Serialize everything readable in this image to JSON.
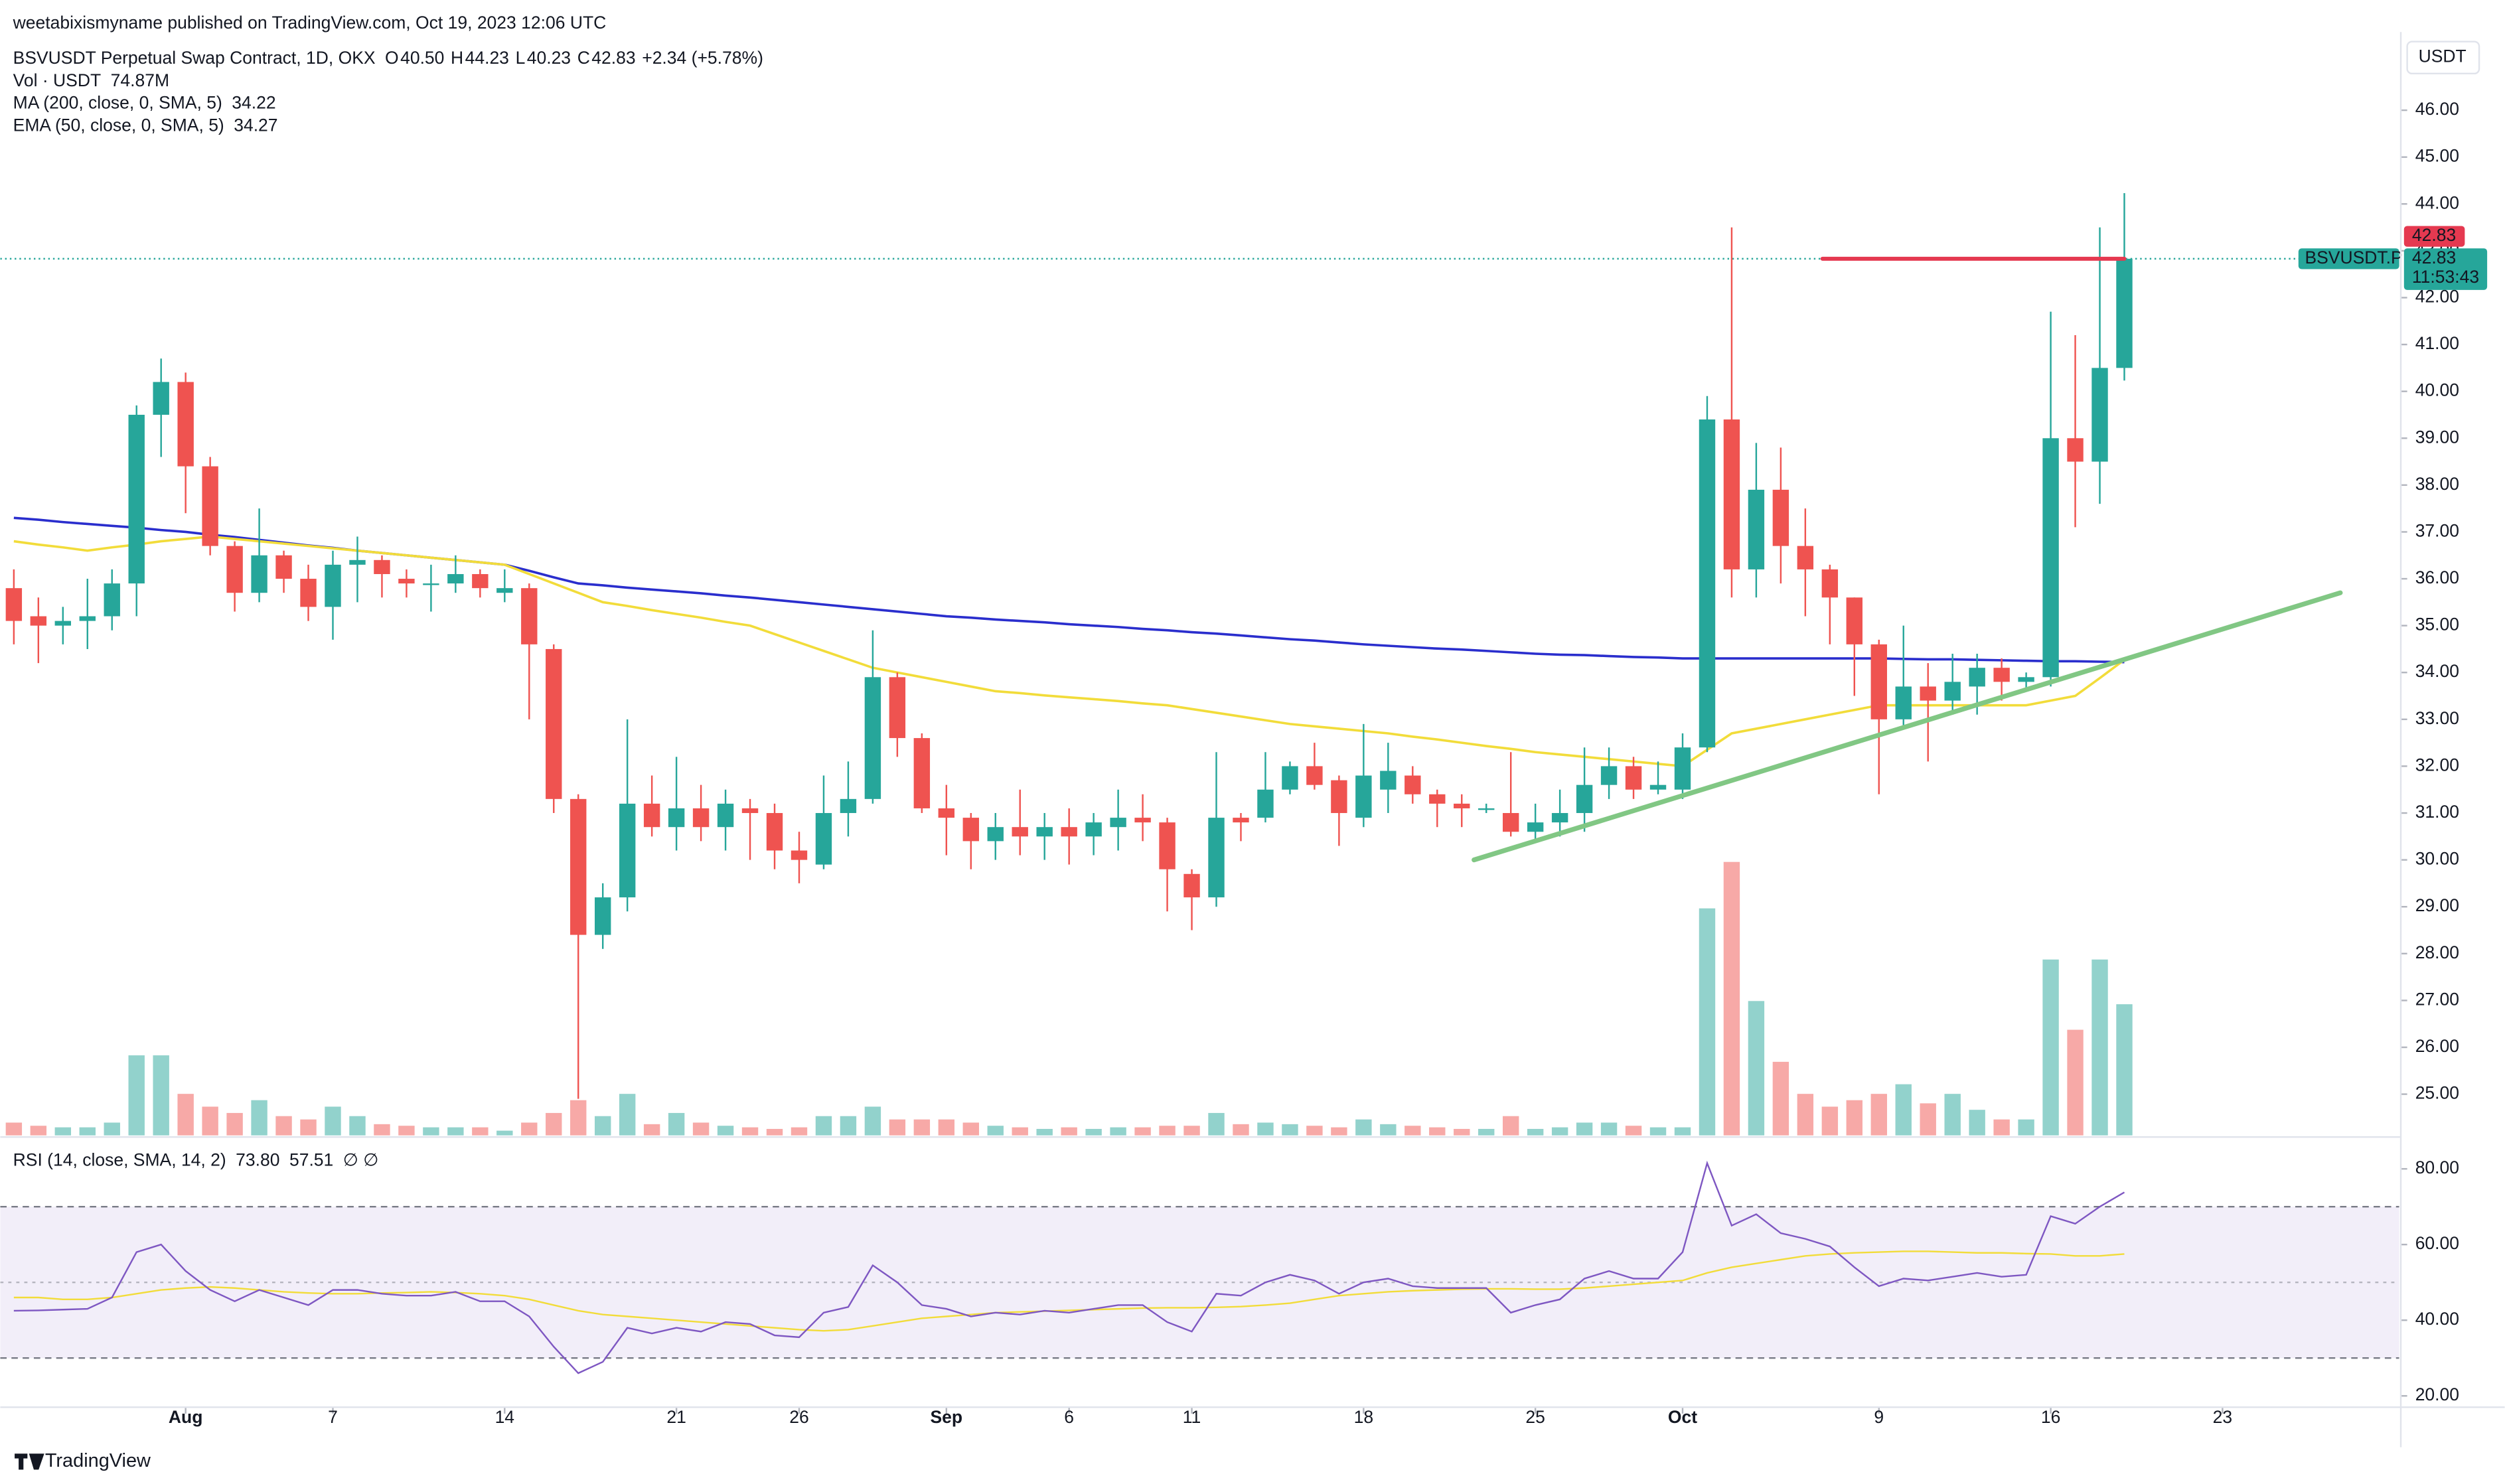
{
  "header": {
    "publisher": "weetabixismyname published on TradingView.com, Oct 19, 2023 12:06 UTC",
    "brand": "TradingView"
  },
  "chart_data": [
    {
      "type": "candlestick",
      "symbol": "BSVUSDT Perpetual Swap Contract, 1D, OKX",
      "currency": "USDT",
      "ohlc_legend": [
        {
          "label": "O",
          "value": "40.50"
        },
        {
          "label": "H",
          "value": "44.23"
        },
        {
          "label": "L",
          "value": "40.23"
        },
        {
          "label": "C",
          "value": "42.83"
        }
      ],
      "change": "+2.34 (+5.78%)",
      "x": [
        0,
        1,
        2,
        3,
        4,
        5,
        6,
        7,
        8,
        9,
        10,
        11,
        12,
        13,
        14,
        15,
        16,
        17,
        18,
        19,
        20,
        21,
        22,
        23,
        24,
        25,
        26,
        27,
        28,
        29,
        30,
        31,
        32,
        33,
        34,
        35,
        36,
        37,
        38,
        39,
        40,
        41,
        42,
        43,
        44,
        45,
        46,
        47,
        48,
        49,
        50,
        51,
        52,
        53,
        54,
        55,
        56,
        57,
        58,
        59,
        60,
        61,
        62,
        63,
        64,
        65,
        66,
        67,
        68,
        69,
        70,
        71,
        72,
        73,
        74,
        75,
        76,
        77,
        78,
        79,
        80,
        81,
        82,
        83,
        84,
        85,
        86
      ],
      "xlim": [
        0,
        97.2
      ],
      "xticks": [
        {
          "value": 7,
          "label": "Aug"
        },
        {
          "value": 13,
          "label": "7"
        },
        {
          "value": 20,
          "label": "14"
        },
        {
          "value": 27,
          "label": "21"
        },
        {
          "value": 32,
          "label": "26"
        },
        {
          "value": 38,
          "label": "Sep"
        },
        {
          "value": 43,
          "label": "6"
        },
        {
          "value": 48,
          "label": "11"
        },
        {
          "value": 55,
          "label": "18"
        },
        {
          "value": 62,
          "label": "25"
        },
        {
          "value": 68,
          "label": "Oct"
        },
        {
          "value": 76,
          "label": "9"
        },
        {
          "value": 83,
          "label": "16"
        },
        {
          "value": 90,
          "label": "23"
        }
      ],
      "ylim": [
        24.12,
        47.67
      ],
      "yticks": [
        {
          "value": 25,
          "label": "25.00"
        },
        {
          "value": 26,
          "label": "26.00"
        },
        {
          "value": 27,
          "label": "27.00"
        },
        {
          "value": 28,
          "label": "28.00"
        },
        {
          "value": 29,
          "label": "29.00"
        },
        {
          "value": 30,
          "label": "30.00"
        },
        {
          "value": 31,
          "label": "31.00"
        },
        {
          "value": 32,
          "label": "32.00"
        },
        {
          "value": 33,
          "label": "33.00"
        },
        {
          "value": 34,
          "label": "34.00"
        },
        {
          "value": 35,
          "label": "35.00"
        },
        {
          "value": 36,
          "label": "36.00"
        },
        {
          "value": 37,
          "label": "37.00"
        },
        {
          "value": 38,
          "label": "38.00"
        },
        {
          "value": 39,
          "label": "39.00"
        },
        {
          "value": 40,
          "label": "40.00"
        },
        {
          "value": 41,
          "label": "41.00"
        },
        {
          "value": 42,
          "label": "42.00"
        },
        {
          "value": 43,
          "label": "43.00"
        },
        {
          "value": 44,
          "label": "44.00"
        },
        {
          "value": 45,
          "label": "45.00"
        },
        {
          "value": 46,
          "label": "46.00"
        }
      ],
      "grid": false,
      "colors": {
        "up": "#26a69a",
        "down": "#ef5350"
      },
      "open": [
        35.8,
        35.2,
        35.0,
        35.1,
        35.2,
        35.9,
        39.5,
        40.2,
        38.4,
        36.7,
        35.7,
        36.5,
        36.0,
        35.4,
        36.3,
        36.4,
        36.0,
        35.9,
        35.9,
        36.1,
        35.7,
        35.8,
        34.5,
        31.3,
        28.4,
        29.2,
        31.2,
        30.7,
        31.1,
        30.7,
        31.1,
        31.0,
        30.2,
        29.9,
        31.0,
        31.3,
        33.9,
        32.6,
        31.1,
        30.9,
        30.4,
        30.7,
        30.5,
        30.7,
        30.5,
        30.7,
        30.9,
        30.8,
        29.7,
        29.2,
        30.9,
        30.9,
        31.5,
        32.0,
        31.7,
        30.9,
        31.5,
        31.8,
        31.4,
        31.2,
        31.1,
        31.0,
        30.6,
        30.8,
        31.0,
        31.6,
        32.0,
        31.5,
        31.5,
        32.4,
        39.4,
        36.2,
        37.9,
        36.7,
        36.2,
        35.6,
        34.6,
        33.0,
        33.7,
        33.4,
        33.7,
        34.1,
        33.8,
        33.9,
        39.0,
        38.5,
        40.5
      ],
      "high": [
        36.2,
        35.6,
        35.4,
        36.0,
        36.2,
        39.7,
        40.7,
        40.4,
        38.6,
        36.8,
        37.5,
        36.6,
        36.3,
        36.6,
        36.9,
        36.5,
        36.2,
        36.3,
        36.5,
        36.2,
        36.2,
        35.9,
        34.6,
        31.4,
        29.5,
        33.0,
        31.8,
        32.2,
        31.6,
        31.5,
        31.3,
        31.2,
        30.6,
        31.8,
        32.1,
        34.9,
        34.0,
        32.7,
        31.6,
        31.0,
        31.0,
        31.5,
        31.0,
        31.1,
        31.0,
        31.5,
        31.4,
        30.9,
        29.8,
        32.3,
        31.0,
        32.3,
        32.1,
        32.5,
        31.8,
        32.9,
        32.5,
        32.0,
        31.5,
        31.4,
        31.2,
        32.3,
        31.2,
        31.5,
        32.4,
        32.4,
        32.2,
        32.1,
        32.7,
        39.9,
        43.5,
        38.9,
        38.8,
        37.5,
        36.3,
        35.6,
        34.7,
        35.0,
        34.2,
        34.4,
        34.4,
        34.3,
        34.0,
        41.7,
        41.2,
        43.5,
        44.23
      ],
      "low": [
        34.6,
        34.2,
        34.6,
        34.5,
        34.9,
        35.2,
        38.6,
        37.4,
        36.5,
        35.3,
        35.5,
        35.7,
        35.1,
        34.7,
        35.5,
        35.6,
        35.6,
        35.3,
        35.7,
        35.6,
        35.5,
        33.0,
        31.0,
        24.9,
        28.1,
        28.9,
        30.5,
        30.2,
        30.4,
        30.2,
        30.0,
        29.8,
        29.5,
        29.8,
        30.5,
        31.2,
        32.2,
        31.0,
        30.1,
        29.8,
        30.0,
        30.1,
        30.0,
        29.9,
        30.1,
        30.2,
        30.4,
        28.9,
        28.5,
        29.0,
        30.4,
        30.8,
        31.4,
        31.5,
        30.3,
        30.7,
        31.0,
        31.2,
        30.7,
        30.7,
        31.0,
        30.5,
        30.4,
        30.5,
        30.6,
        31.3,
        31.3,
        31.4,
        31.3,
        32.3,
        35.6,
        35.6,
        35.9,
        35.2,
        34.6,
        33.5,
        31.4,
        32.8,
        32.1,
        33.1,
        33.1,
        33.4,
        33.6,
        33.7,
        37.1,
        37.6,
        40.23
      ],
      "close": [
        35.1,
        35.0,
        35.1,
        35.2,
        35.9,
        39.5,
        40.2,
        38.4,
        36.7,
        35.7,
        36.5,
        36.0,
        35.4,
        36.3,
        36.4,
        36.1,
        35.9,
        35.9,
        36.1,
        35.8,
        35.8,
        34.6,
        31.3,
        28.4,
        29.2,
        31.2,
        30.7,
        31.1,
        30.7,
        31.2,
        31.0,
        30.2,
        30.0,
        31.0,
        31.3,
        33.9,
        32.6,
        31.1,
        30.9,
        30.4,
        30.7,
        30.5,
        30.7,
        30.5,
        30.8,
        30.9,
        30.8,
        29.8,
        29.2,
        30.9,
        30.8,
        31.5,
        32.0,
        31.6,
        31.0,
        31.8,
        31.9,
        31.4,
        31.2,
        31.1,
        31.1,
        30.6,
        30.8,
        31.0,
        31.6,
        32.0,
        31.5,
        31.6,
        32.4,
        39.4,
        36.2,
        37.9,
        36.7,
        36.2,
        35.6,
        34.6,
        33.0,
        33.7,
        33.4,
        33.8,
        34.1,
        33.8,
        33.9,
        39.0,
        38.5,
        40.5,
        42.83
      ],
      "series": [
        {
          "name": "MA (200, close, 0, SMA, 5)",
          "color": "#2a2ecd",
          "values": [
            37.3,
            37.26,
            37.21,
            37.17,
            37.13,
            37.09,
            37.04,
            37.0,
            36.94,
            36.89,
            36.83,
            36.77,
            36.71,
            36.66,
            36.6,
            36.55,
            36.5,
            36.45,
            36.4,
            36.35,
            36.3,
            36.17,
            36.03,
            35.9,
            35.86,
            35.81,
            35.77,
            35.73,
            35.69,
            35.64,
            35.6,
            35.55,
            35.5,
            35.45,
            35.4,
            35.35,
            35.3,
            35.25,
            35.2,
            35.17,
            35.13,
            35.1,
            35.07,
            35.03,
            35.0,
            34.97,
            34.93,
            34.9,
            34.86,
            34.83,
            34.79,
            34.75,
            34.71,
            34.68,
            34.64,
            34.6,
            34.57,
            34.54,
            34.51,
            34.49,
            34.46,
            34.43,
            34.4,
            34.38,
            34.37,
            34.35,
            34.33,
            34.32,
            34.3,
            34.3,
            34.3,
            34.3,
            34.3,
            34.3,
            34.3,
            34.3,
            34.3,
            34.29,
            34.28,
            34.28,
            34.27,
            34.26,
            34.25,
            34.24,
            34.24,
            34.23,
            34.22
          ]
        },
        {
          "name": "EMA (50, close, 0, SMA, 5)",
          "color": "#f2dc3a",
          "values": [
            36.8,
            36.73,
            36.67,
            36.6,
            36.67,
            36.73,
            36.8,
            36.85,
            36.9,
            36.85,
            36.8,
            36.75,
            36.7,
            36.65,
            36.6,
            36.55,
            36.5,
            36.45,
            36.4,
            36.35,
            36.3,
            36.1,
            35.9,
            35.7,
            35.5,
            35.42,
            35.33,
            35.25,
            35.17,
            35.08,
            35.0,
            34.82,
            34.64,
            34.46,
            34.28,
            34.1,
            34.0,
            33.9,
            33.8,
            33.7,
            33.6,
            33.56,
            33.51,
            33.47,
            33.43,
            33.39,
            33.34,
            33.3,
            33.22,
            33.14,
            33.06,
            32.98,
            32.9,
            32.85,
            32.8,
            32.75,
            32.7,
            32.63,
            32.57,
            32.5,
            32.43,
            32.37,
            32.3,
            32.25,
            32.2,
            32.15,
            32.1,
            32.05,
            32.0,
            32.35,
            32.7,
            32.8,
            32.9,
            33.0,
            33.1,
            33.2,
            33.3,
            33.3,
            33.3,
            33.3,
            33.3,
            33.3,
            33.3,
            33.4,
            33.5,
            33.88,
            34.27
          ]
        }
      ],
      "volume": {
        "name": "Vol · USDT",
        "last_label": "74.87M",
        "values": [
          7.3,
          5.5,
          4.6,
          4.6,
          7.3,
          45.7,
          45.7,
          23.7,
          16.4,
          12.8,
          20.1,
          11.0,
          9.1,
          16.4,
          11.0,
          6.4,
          5.5,
          4.6,
          4.6,
          4.6,
          2.7,
          7.3,
          12.8,
          20.1,
          11.0,
          23.7,
          6.4,
          12.8,
          7.3,
          5.5,
          4.6,
          3.7,
          4.6,
          11.0,
          11.0,
          16.4,
          9.1,
          9.1,
          9.1,
          7.3,
          5.5,
          4.6,
          3.7,
          4.6,
          3.7,
          4.6,
          4.6,
          5.5,
          5.5,
          12.8,
          6.4,
          7.3,
          6.4,
          5.5,
          4.6,
          9.1,
          6.4,
          5.5,
          4.6,
          3.7,
          3.7,
          11.0,
          3.7,
          4.6,
          7.3,
          7.3,
          5.5,
          4.6,
          4.6,
          129.6,
          156.1,
          76.7,
          42.0,
          23.7,
          16.4,
          20.1,
          23.7,
          29.2,
          18.3,
          23.7,
          14.6,
          9.1,
          9.1,
          100.4,
          60.3,
          100.4,
          74.87
        ]
      },
      "last_price": {
        "value": 42.83,
        "label": "42.83",
        "symbol": "BSVUSDT.P",
        "countdown": "11:53:43",
        "color": "#26a69a"
      },
      "drawings": [
        {
          "type": "trendline",
          "color": "#81c784",
          "points": [
            [
              59.5,
              30.0
            ],
            [
              94.8,
              35.7
            ]
          ]
        },
        {
          "type": "horizontal",
          "color": "#e53950",
          "points": [
            [
              73.7,
              42.83
            ],
            [
              86,
              42.83
            ]
          ],
          "label": "42.83"
        }
      ]
    },
    {
      "type": "line",
      "name": "RSI (14, close, SMA, 14, 2)",
      "extra": "∅ ∅",
      "ylim": [
        17,
        88
      ],
      "yticks": [
        {
          "value": 20,
          "label": "20.00"
        },
        {
          "value": 40,
          "label": "40.00"
        },
        {
          "value": 60,
          "label": "60.00"
        },
        {
          "value": 80,
          "label": "80.00"
        }
      ],
      "bands": [
        30,
        50,
        70
      ],
      "band_color": "#7e57c2",
      "series": [
        {
          "color": "#7e57c2",
          "legend_label": "73.80",
          "values": [
            42.5,
            42.6,
            42.8,
            43,
            46,
            58,
            60,
            53,
            48,
            45,
            48,
            46,
            44,
            48,
            48,
            47,
            46.5,
            46.5,
            47.5,
            45,
            45,
            41,
            33,
            26,
            29,
            38,
            36.5,
            38,
            37,
            39.5,
            39,
            36,
            35.5,
            42,
            43.5,
            54.5,
            50,
            44,
            43,
            41,
            42,
            41.5,
            42.5,
            42,
            43,
            44,
            44,
            39.5,
            37,
            47,
            46.5,
            50,
            52,
            50.5,
            47,
            50,
            51,
            49,
            48.5,
            48.5,
            48.5,
            42,
            44,
            45.5,
            51,
            53,
            51,
            51,
            58,
            81.5,
            65,
            68,
            63,
            61.5,
            59.5,
            54,
            49,
            51,
            50.5,
            51.5,
            52.5,
            51.5,
            52,
            67.5,
            65.5,
            70,
            73.8
          ]
        },
        {
          "color": "#f2dc3a",
          "legend_label": "57.51",
          "values": [
            46,
            46,
            45.5,
            45.5,
            46,
            47,
            48,
            48.5,
            48.8,
            48.5,
            48,
            47.5,
            47.2,
            47,
            47,
            47.2,
            47.3,
            47.5,
            47.3,
            47,
            46.5,
            45.5,
            44,
            42.5,
            41.5,
            41,
            40.5,
            40,
            39.5,
            39,
            38.5,
            38,
            37.5,
            37.2,
            37.5,
            38.5,
            39.5,
            40.5,
            41,
            41.5,
            42,
            42.2,
            42.4,
            42.6,
            42.8,
            43,
            43.2,
            43.3,
            43.3,
            43.4,
            43.6,
            44,
            44.5,
            45.5,
            46.5,
            47,
            47.5,
            47.8,
            48,
            48.2,
            48.3,
            48.3,
            48.2,
            48.2,
            48.5,
            49,
            49.5,
            50,
            50.5,
            52.5,
            54,
            55,
            56,
            57,
            57.5,
            57.8,
            58,
            58.2,
            58.2,
            58,
            57.8,
            57.8,
            57.6,
            57.5,
            57,
            57,
            57.51
          ]
        }
      ]
    }
  ]
}
